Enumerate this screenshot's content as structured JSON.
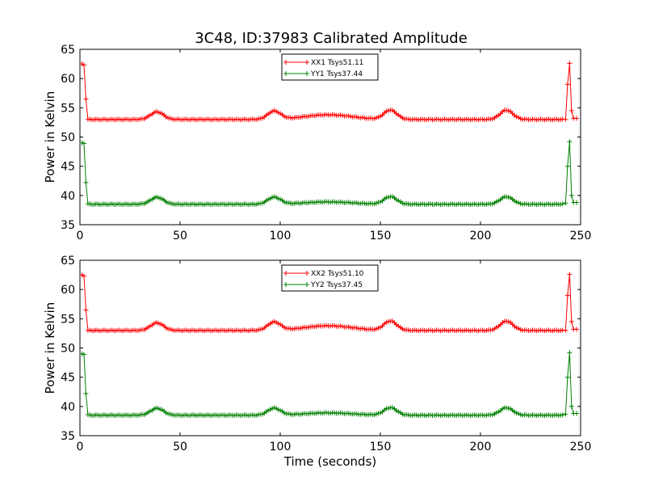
{
  "chart_data": {
    "title": "3C48, ID:37983 Calibrated Amplitude",
    "panels": [
      {
        "type": "line",
        "ylabel": "Power in Kelvin",
        "xlabel": "",
        "xlim": [
          0,
          250
        ],
        "ylim": [
          35,
          65
        ],
        "xticks": [
          "0",
          "50",
          "100",
          "150",
          "200",
          "250"
        ],
        "yticks": [
          "35",
          "40",
          "45",
          "50",
          "55",
          "60",
          "65"
        ],
        "legend_position": "top-center",
        "series": [
          {
            "name": "XX1 Tsys51.11",
            "color": "#ff0000",
            "kind": "xx"
          },
          {
            "name": "YY1 Tsys37.44",
            "color": "#008000",
            "kind": "yy"
          }
        ]
      },
      {
        "type": "line",
        "ylabel": "Power in Kelvin",
        "xlabel": "Time (seconds)",
        "xlim": [
          0,
          250
        ],
        "ylim": [
          35,
          65
        ],
        "xticks": [
          "0",
          "50",
          "100",
          "150",
          "200",
          "250"
        ],
        "yticks": [
          "35",
          "40",
          "45",
          "50",
          "55",
          "60",
          "65"
        ],
        "legend_position": "top-center",
        "series": [
          {
            "name": "XX2 Tsys51.10",
            "color": "#ff0000",
            "kind": "xx"
          },
          {
            "name": "YY2 Tsys37.45",
            "color": "#008000",
            "kind": "yy"
          }
        ]
      }
    ],
    "profiles": {
      "xx": {
        "baseline": 53.0,
        "start_values": [
          [
            1,
            62.5
          ],
          [
            2,
            62.3
          ],
          [
            3,
            56.5
          ],
          [
            4,
            53.0
          ]
        ],
        "bumps": [
          [
            38.5,
            54.3
          ],
          [
            97,
            54.4
          ],
          [
            124,
            53.8
          ],
          [
            155,
            54.6
          ],
          [
            213,
            54.6
          ]
        ],
        "end_values": [
          [
            242.5,
            53.0
          ],
          [
            243.5,
            59.0
          ],
          [
            244.5,
            62.6
          ],
          [
            245.5,
            54.5
          ],
          [
            246.5,
            53.2
          ],
          [
            248,
            53.2
          ]
        ]
      },
      "yy": {
        "baseline": 38.5,
        "start_values": [
          [
            1,
            49.0
          ],
          [
            2,
            48.9
          ],
          [
            3,
            42.2
          ],
          [
            4,
            38.6
          ]
        ],
        "bumps": [
          [
            38.5,
            39.7
          ],
          [
            97,
            39.7
          ],
          [
            124,
            38.9
          ],
          [
            155,
            39.8
          ],
          [
            213,
            39.8
          ]
        ],
        "end_values": [
          [
            242.5,
            38.7
          ],
          [
            243.5,
            45.0
          ],
          [
            244.5,
            49.2
          ],
          [
            245.5,
            40.0
          ],
          [
            246.5,
            38.8
          ],
          [
            248,
            38.8
          ]
        ]
      }
    }
  }
}
